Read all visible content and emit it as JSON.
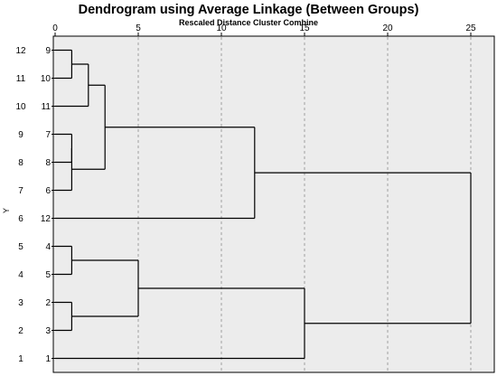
{
  "chart_data": {
    "type": "dendrogram",
    "title": "Dendrogram using Average Linkage (Between Groups)",
    "subtitle": "Rescaled Distance Cluster Combine",
    "ylabel": "Y",
    "x_ticks": [
      0,
      5,
      10,
      15,
      20,
      25
    ],
    "xlim": [
      0,
      25
    ],
    "grid": "vertical dashed lines at each tick",
    "leaf_order": [
      "9",
      "10",
      "11",
      "7",
      "8",
      "6",
      "12",
      "4",
      "5",
      "2",
      "3",
      "1"
    ],
    "case_numbers": [
      "12",
      "11",
      "10",
      "9",
      "8",
      "7",
      "6",
      "5",
      "4",
      "3",
      "2",
      "1"
    ],
    "merges": [
      {
        "members": [
          "9",
          "10"
        ],
        "distance": 1
      },
      {
        "members": [
          "7",
          "8"
        ],
        "distance": 1
      },
      {
        "members": [
          "8",
          "6"
        ],
        "distance": 1
      },
      {
        "members": [
          "4",
          "5"
        ],
        "distance": 1
      },
      {
        "members": [
          "2",
          "3"
        ],
        "distance": 1
      },
      {
        "members": [
          "9-10",
          "11"
        ],
        "distance": 2
      },
      {
        "members": [
          "9-10-11",
          "7-8-6"
        ],
        "distance": 3
      },
      {
        "members": [
          "4-5",
          "2-3"
        ],
        "distance": 5
      },
      {
        "members": [
          "9-6",
          "12"
        ],
        "distance": 12
      },
      {
        "members": [
          "4-3",
          "1"
        ],
        "distance": 15
      },
      {
        "members": [
          "upper",
          "lower"
        ],
        "distance": 25
      }
    ]
  }
}
